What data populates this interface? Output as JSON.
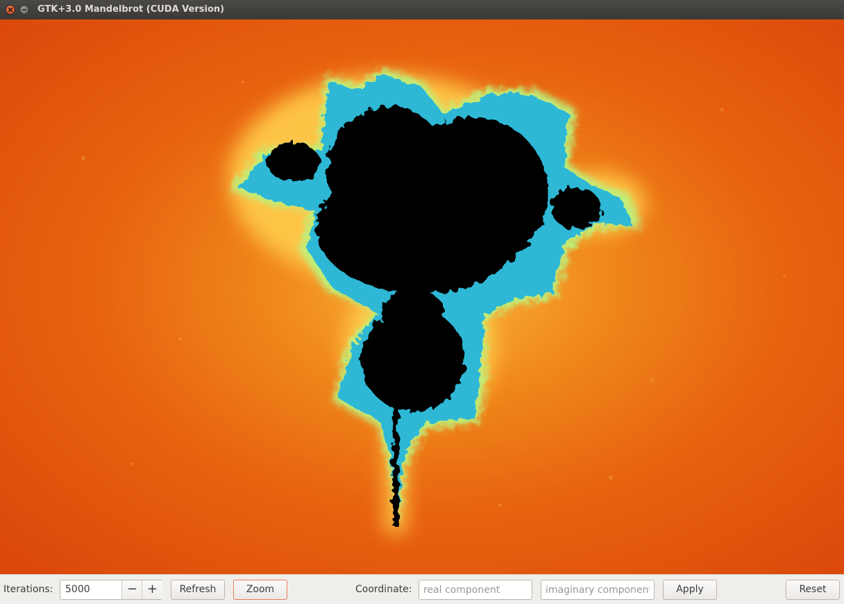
{
  "window": {
    "title": "GTK+3.0 Mandelbrot (CUDA Version)"
  },
  "canvas": {
    "background_color": "#e8620f",
    "set_color": "#000000",
    "edge_colors": [
      "#ffd84a",
      "#bff07a",
      "#55e3c4",
      "#1fa4d8",
      "#0a2a9a"
    ]
  },
  "toolbar": {
    "iterations_label": "Iterations:",
    "iterations_value": "5000",
    "decrement_label": "−",
    "increment_label": "+",
    "refresh_label": "Refresh",
    "zoom_label": "Zoom",
    "coordinate_label": "Coordinate:",
    "real_placeholder": "real component",
    "imag_placeholder": "imaginary component",
    "apply_label": "Apply",
    "reset_label": "Reset"
  }
}
